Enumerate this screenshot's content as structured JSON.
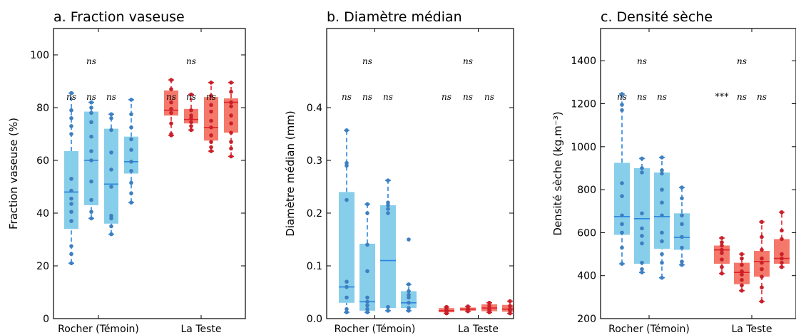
{
  "colors": {
    "control_box": "#87ceeb",
    "control_line": "#2a86e0",
    "control_point": "#3f7fbf",
    "treat_box": "#f4796b",
    "treat_line": "#e0202a",
    "treat_point": "#c8202a"
  },
  "chart_data": [
    {
      "type": "box",
      "title": "a. Fraction vaseuse",
      "ylabel": "Fraction vaseuse (%)",
      "ylim": [
        0,
        110
      ],
      "yticks": [
        0,
        20,
        40,
        60,
        80,
        100
      ],
      "ytick_labels": [
        "0",
        "20",
        "40",
        "60",
        "80",
        "100"
      ],
      "group_labels": [
        "Rocher (Témoin)",
        "La Teste"
      ],
      "groups": [
        {
          "name": "Rocher (Témoin)",
          "color": "control",
          "top_annotation": "ns",
          "annotations": [
            "ns",
            "ns",
            "ns"
          ],
          "boxes": [
            {
              "q1": 34,
              "median": 48,
              "q3": 63.5,
              "whisker_low": 21,
              "whisker_high": 85.5,
              "points": [
                21,
                24.5,
                27.5,
                37,
                40.5,
                43.5,
                45.5,
                48.5,
                53,
                70,
                73,
                76,
                79,
                85.5
              ]
            },
            {
              "q1": 43,
              "median": 60,
              "q3": 78.5,
              "whisker_low": 38,
              "whisker_high": 82,
              "points": [
                38,
                40.5,
                45,
                52,
                60,
                63.5,
                69,
                74.5,
                78,
                80,
                82
              ]
            },
            {
              "q1": 36,
              "median": 51,
              "q3": 72,
              "whisker_low": 32,
              "whisker_high": 77.5,
              "points": [
                32,
                35,
                38,
                39,
                50,
                56.5,
                63,
                71.5,
                76,
                77.5
              ]
            },
            {
              "q1": 55,
              "median": 59.5,
              "q3": 69,
              "whisker_low": 44,
              "whisker_high": 83,
              "points": [
                44,
                47.5,
                51.5,
                56,
                59.5,
                64,
                68,
                72.5,
                77.5,
                83
              ]
            }
          ]
        },
        {
          "name": "La Teste",
          "color": "treat",
          "top_annotation": "ns",
          "annotations": [
            "ns",
            "ns",
            "ns"
          ],
          "boxes": [
            {
              "q1": 77,
              "median": 79,
              "q3": 86.5,
              "whisker_low": 69.5,
              "whisker_high": 90.5,
              "points": [
                69.5,
                70,
                74,
                78,
                79.5,
                82,
                87,
                90.5
              ]
            },
            {
              "q1": 74,
              "median": 75.5,
              "q3": 79.5,
              "whisker_low": 71.5,
              "whisker_high": 85,
              "points": [
                71.5,
                73,
                74.5,
                76,
                77,
                79,
                85
              ]
            },
            {
              "q1": 67.5,
              "median": 72.5,
              "q3": 84,
              "whisker_low": 63.5,
              "whisker_high": 89.5,
              "points": [
                63.5,
                65,
                67,
                69.5,
                72.5,
                75,
                78.5,
                81,
                84.5,
                89.5
              ]
            },
            {
              "q1": 70.5,
              "median": 82,
              "q3": 83.5,
              "whisker_low": 61.5,
              "whisker_high": 89.5,
              "points": [
                61.5,
                64.5,
                67,
                70.5,
                74,
                77,
                80.5,
                82,
                86,
                89.5
              ]
            }
          ]
        }
      ]
    },
    {
      "type": "box",
      "title": "b. Diamètre médian",
      "ylabel": "Diamètre médian (mm)",
      "ylim": [
        0,
        0.55
      ],
      "yticks": [
        0,
        0.1,
        0.2,
        0.3,
        0.4
      ],
      "ytick_labels": [
        "0.0",
        "0.1",
        "0.2",
        "0.3",
        "0.4"
      ],
      "group_labels": [
        "Rocher (Témoin)",
        "La Teste"
      ],
      "groups": [
        {
          "name": "Rocher (Témoin)",
          "color": "control",
          "top_annotation": "ns",
          "annotations": [
            "ns",
            "ns",
            "ns"
          ],
          "boxes": [
            {
              "q1": 0.03,
              "median": 0.06,
              "q3": 0.24,
              "whisker_low": 0.012,
              "whisker_high": 0.357,
              "points": [
                0.012,
                0.018,
                0.04,
                0.06,
                0.07,
                0.225,
                0.29,
                0.295,
                0.357
              ]
            },
            {
              "q1": 0.015,
              "median": 0.032,
              "q3": 0.142,
              "whisker_low": 0.012,
              "whisker_high": 0.217,
              "points": [
                0.012,
                0.018,
                0.025,
                0.032,
                0.04,
                0.09,
                0.14,
                0.2,
                0.217
              ]
            },
            {
              "q1": 0.02,
              "median": 0.11,
              "q3": 0.215,
              "whisker_low": 0.015,
              "whisker_high": 0.262,
              "points": [
                0.015,
                0.022,
                0.2,
                0.208,
                0.215,
                0.22,
                0.262
              ]
            },
            {
              "q1": 0.02,
              "median": 0.03,
              "q3": 0.052,
              "whisker_low": 0.015,
              "whisker_high": 0.065,
              "points": [
                0.015,
                0.02,
                0.03,
                0.04,
                0.045,
                0.052,
                0.065,
                0.15
              ]
            }
          ]
        },
        {
          "name": "La Teste",
          "color": "treat",
          "top_annotation": "ns",
          "annotations": [
            "ns",
            "ns",
            "ns"
          ],
          "boxes": [
            {
              "q1": 0.012,
              "median": 0.015,
              "q3": 0.02,
              "whisker_low": 0.01,
              "whisker_high": 0.022,
              "points": [
                0.01,
                0.013,
                0.016,
                0.019,
                0.022
              ]
            },
            {
              "q1": 0.015,
              "median": 0.018,
              "q3": 0.021,
              "whisker_low": 0.014,
              "whisker_high": 0.023,
              "points": [
                0.014,
                0.016,
                0.018,
                0.02,
                0.023
              ]
            },
            {
              "q1": 0.014,
              "median": 0.02,
              "q3": 0.027,
              "whisker_low": 0.012,
              "whisker_high": 0.03,
              "points": [
                0.012,
                0.016,
                0.02,
                0.025,
                0.03
              ]
            },
            {
              "q1": 0.013,
              "median": 0.018,
              "q3": 0.026,
              "whisker_low": 0.01,
              "whisker_high": 0.033,
              "points": [
                0.01,
                0.015,
                0.018,
                0.024,
                0.033
              ]
            }
          ]
        }
      ]
    },
    {
      "type": "box",
      "title": "c. Densité sèche",
      "ylabel": "Densité sèche (kg.m⁻³)",
      "ylim": [
        200,
        1550
      ],
      "yticks": [
        200,
        400,
        600,
        800,
        1000,
        1200,
        1400
      ],
      "ytick_labels": [
        "200",
        "400",
        "600",
        "800",
        "1000",
        "1200",
        "1400"
      ],
      "group_labels": [
        "Rocher (Témoin)",
        "La Teste"
      ],
      "groups": [
        {
          "name": "Rocher (Témoin)",
          "color": "control",
          "top_annotation": "ns",
          "annotations": [
            "ns",
            "ns",
            "ns"
          ],
          "boxes": [
            {
              "q1": 590,
              "median": 675,
              "q3": 925,
              "whisker_low": 455,
              "whisker_high": 1245,
              "points": [
                455,
                530,
                600,
                640,
                680,
                770,
                830,
                1170,
                1195,
                1245
              ]
            },
            {
              "q1": 455,
              "median": 665,
              "q3": 900,
              "whisker_low": 415,
              "whisker_high": 945,
              "points": [
                415,
                430,
                460,
                550,
                585,
                620,
                690,
                880,
                900,
                945
              ]
            },
            {
              "q1": 525,
              "median": 675,
              "q3": 880,
              "whisker_low": 390,
              "whisker_high": 950,
              "points": [
                390,
                460,
                500,
                560,
                600,
                680,
                740,
                800,
                875,
                890,
                950
              ]
            },
            {
              "q1": 520,
              "median": 578,
              "q3": 690,
              "whisker_low": 450,
              "whisker_high": 810,
              "points": [
                450,
                465,
                530,
                580,
                640,
                680,
                760,
                810
              ]
            }
          ]
        },
        {
          "name": "La Teste",
          "color": "treat",
          "top_annotation": "ns",
          "annotations": [
            "***",
            "ns",
            "ns"
          ],
          "boxes": [
            {
              "q1": 455,
              "median": 520,
              "q3": 540,
              "whisker_low": 410,
              "whisker_high": 575,
              "points": [
                410,
                440,
                475,
                505,
                520,
                540,
                555,
                575
              ]
            },
            {
              "q1": 360,
              "median": 415,
              "q3": 460,
              "whisker_low": 330,
              "whisker_high": 500,
              "points": [
                330,
                355,
                380,
                405,
                420,
                450,
                480,
                500
              ]
            },
            {
              "q1": 395,
              "median": 465,
              "q3": 515,
              "whisker_low": 280,
              "whisker_high": 650,
              "points": [
                280,
                345,
                395,
                430,
                460,
                480,
                520,
                580,
                650
              ]
            },
            {
              "q1": 455,
              "median": 480,
              "q3": 570,
              "whisker_low": 440,
              "whisker_high": 695,
              "points": [
                440,
                460,
                480,
                500,
                570,
                610,
                695
              ]
            }
          ]
        }
      ]
    }
  ]
}
